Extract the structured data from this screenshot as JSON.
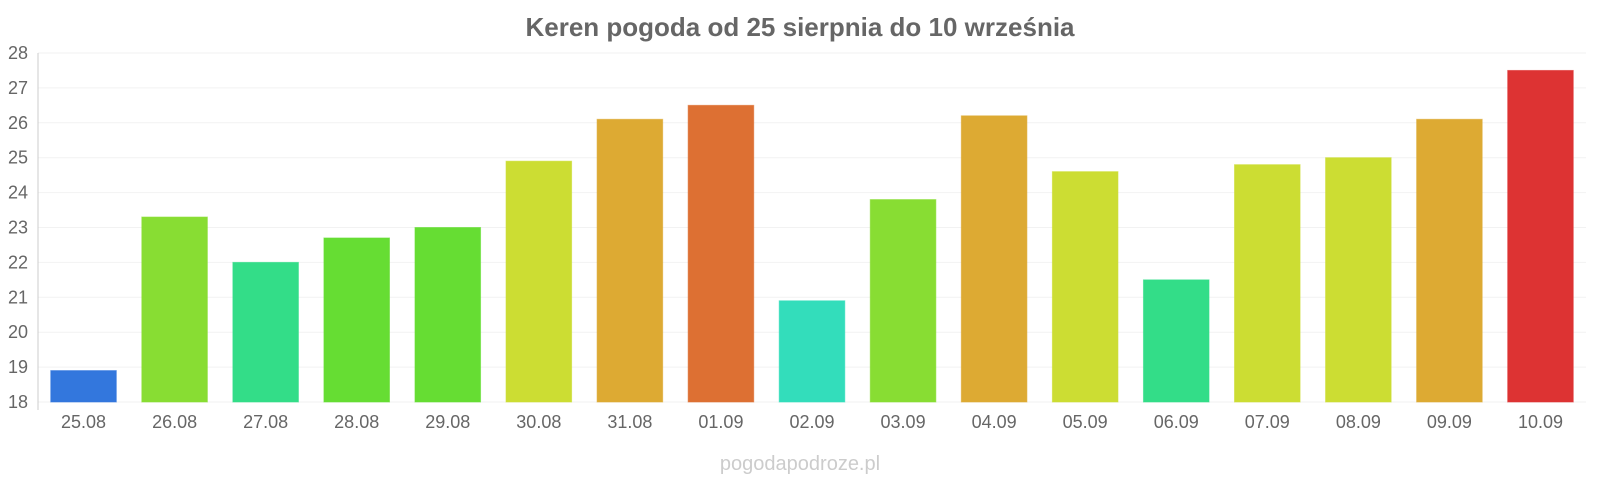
{
  "chart_data": {
    "type": "bar",
    "title": "Keren pogoda od 25 sierpnia do 10 września",
    "xlabel": "",
    "ylabel": "",
    "ylim": [
      18,
      28
    ],
    "yticks": [
      "18",
      "19",
      "20",
      "21",
      "22",
      "23",
      "24",
      "25",
      "26",
      "27",
      "28"
    ],
    "grid": true,
    "categories": [
      "25.08",
      "26.08",
      "27.08",
      "28.08",
      "29.08",
      "30.08",
      "31.08",
      "01.09",
      "02.09",
      "03.09",
      "04.09",
      "05.09",
      "06.09",
      "07.09",
      "08.09",
      "09.09",
      "10.09"
    ],
    "values": [
      18.9,
      23.3,
      22.0,
      22.7,
      23.0,
      24.9,
      26.1,
      26.5,
      20.9,
      23.8,
      26.2,
      24.6,
      21.5,
      24.8,
      25.0,
      26.1,
      27.5
    ],
    "colors": [
      "#3377dd",
      "#88dd33",
      "#33dd88",
      "#66dd33",
      "#66dd33",
      "#ccdd33",
      "#ddaa33",
      "#dd7033",
      "#33ddbb",
      "#88dd33",
      "#ddaa33",
      "#ccdd33",
      "#33dd88",
      "#ccdd33",
      "#ccdd33",
      "#ddaa33",
      "#dd3333"
    ]
  },
  "footer": {
    "source": "pogodapodroze.pl"
  }
}
